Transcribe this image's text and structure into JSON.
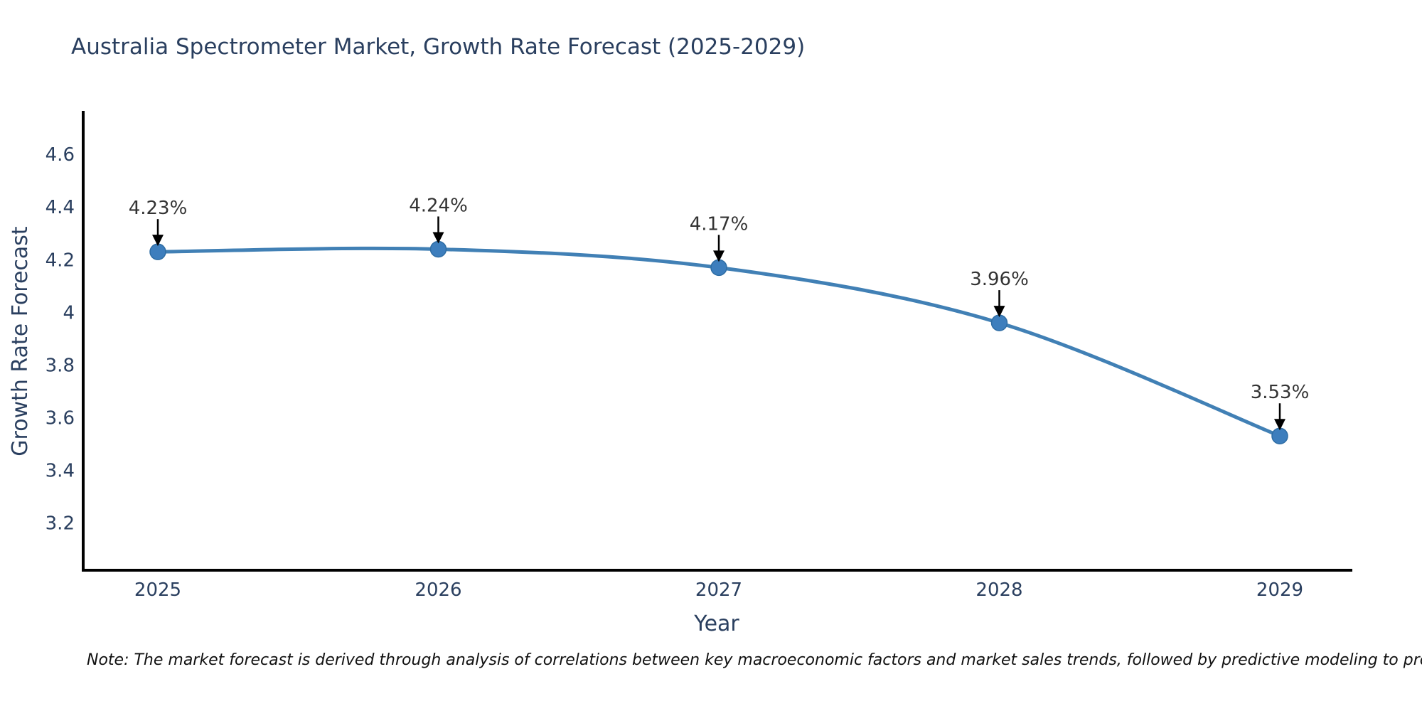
{
  "chart_data": {
    "type": "line",
    "title": "Australia Spectrometer Market, Growth Rate Forecast (2025-2029)",
    "xlabel": "Year",
    "ylabel": "Growth Rate Forecast",
    "x": [
      2025,
      2026,
      2027,
      2028,
      2029
    ],
    "series": [
      {
        "name": "Growth Rate Forecast",
        "values": [
          4.23,
          4.24,
          4.17,
          3.96,
          3.53
        ],
        "labels": [
          "4.23%",
          "4.24%",
          "4.17%",
          "3.96%",
          "3.53%"
        ]
      }
    ],
    "yticks": [
      3.2,
      3.4,
      3.6,
      3.8,
      4,
      4.2,
      4.4,
      4.6
    ],
    "ylim": [
      3.02,
      4.76
    ],
    "grid": false,
    "legend_position": "none",
    "line_shape": "spline",
    "annotation_style": "value labels with downward arrows above each point",
    "colors": {
      "line": "#4180b5",
      "marker": "#3d7ebd",
      "marker_edge": "#2e6da4",
      "axis_line": "#000000",
      "axis_text": "#2a3f5f",
      "annotation_text": "#333333",
      "arrow": "#000000",
      "background": "#ffffff"
    }
  },
  "note": "Note: The market forecast is derived through analysis of correlations between key macroeconomic factors and market sales trends, followed by predictive modeling to project future sales"
}
